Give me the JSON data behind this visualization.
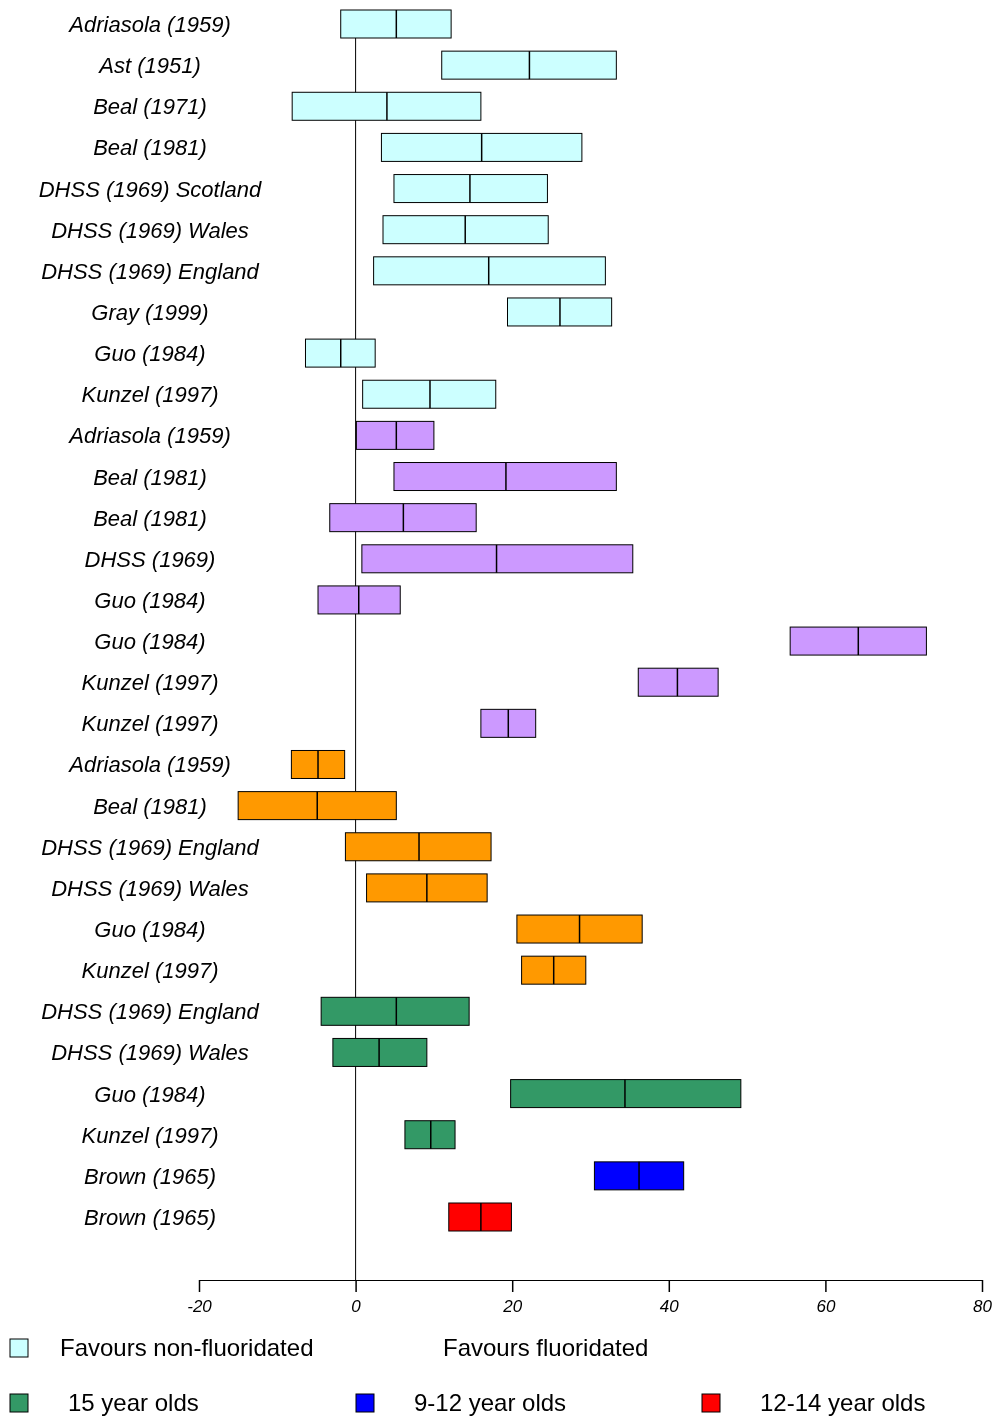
{
  "chart_data": {
    "type": "box",
    "orientation": "horizontal",
    "categories": [
      "Adriasola (1959)",
      "Ast (1951)",
      "Beal (1971)",
      "Beal (1981)",
      "DHSS (1969) Scotland",
      "DHSS (1969) Wales",
      "DHSS (1969) England",
      "Gray (1999)",
      "Guo (1984)",
      "Kunzel (1997)",
      "Adriasola (1959)",
      "Beal (1981)",
      "Beal (1981)",
      "DHSS (1969)",
      "Guo (1984)",
      "Guo (1984)",
      "Kunzel (1997)",
      "Kunzel (1997)",
      "Adriasola (1959)",
      "Beal (1981)",
      "DHSS (1969) England",
      "DHSS (1969) Wales",
      "Guo (1984)",
      "Kunzel (1997)",
      "DHSS (1969) England",
      "DHSS (1969) Wales",
      "Guo (1984)",
      "Kunzel (1997)",
      "Brown (1965)",
      "Brown (1965)"
    ],
    "series": [
      {
        "name": "Favours non-fluoridated",
        "color": "#ccffff",
        "boxes": [
          {
            "low": -1.9,
            "q1": -1.9,
            "median": 5.2,
            "q3": 12.2,
            "high": 12.2
          },
          {
            "low": 11,
            "q1": 11,
            "median": 22.2,
            "q3": 33.3,
            "high": 33.3
          },
          {
            "low": -8.1,
            "q1": -8.1,
            "median": 4,
            "q3": 16,
            "high": 16
          },
          {
            "low": 3.3,
            "q1": 3.3,
            "median": 16.1,
            "q3": 28.9,
            "high": 28.9
          },
          {
            "low": 4.9,
            "q1": 4.9,
            "median": 14.6,
            "q3": 24.5,
            "high": 24.5
          },
          {
            "low": 3.5,
            "q1": 3.5,
            "median": 14,
            "q3": 24.6,
            "high": 24.6
          },
          {
            "low": 2.3,
            "q1": 2.3,
            "median": 17,
            "q3": 31.9,
            "high": 31.9
          },
          {
            "low": 19.4,
            "q1": 19.4,
            "median": 26.1,
            "q3": 32.7,
            "high": 32.7
          },
          {
            "low": -6.4,
            "q1": -6.4,
            "median": -1.9,
            "q3": 2.5,
            "high": 2.5
          },
          {
            "low": 0.9,
            "q1": 0.9,
            "median": 9.5,
            "q3": 17.9,
            "high": 17.9
          },
          null,
          null,
          null,
          null,
          null,
          null,
          null,
          null,
          null,
          null,
          null,
          null,
          null,
          null,
          null,
          null,
          null,
          null,
          null,
          null
        ]
      },
      {
        "color": "#cc99ff",
        "boxes": [
          null,
          null,
          null,
          null,
          null,
          null,
          null,
          null,
          null,
          null,
          {
            "low": 0.1,
            "q1": 0.1,
            "median": 5.2,
            "q3": 10,
            "high": 10
          },
          {
            "low": 4.9,
            "q1": 4.9,
            "median": 19.2,
            "q3": 33.3,
            "high": 33.3
          },
          {
            "low": -3.3,
            "q1": -3.3,
            "median": 6.1,
            "q3": 15.4,
            "high": 15.4
          },
          {
            "low": 0.8,
            "q1": 0.8,
            "median": 18,
            "q3": 35.4,
            "high": 35.4
          },
          {
            "low": -4.8,
            "q1": -4.8,
            "median": 0.4,
            "q3": 5.7,
            "high": 5.7
          },
          {
            "low": 55.5,
            "q1": 55.5,
            "median": 64.2,
            "q3": 72.9,
            "high": 72.9
          },
          {
            "low": 36.1,
            "q1": 36.1,
            "median": 41.1,
            "q3": 46.3,
            "high": 46.3
          },
          {
            "low": 16,
            "q1": 16,
            "median": 19.5,
            "q3": 23,
            "high": 23
          },
          null,
          null,
          null,
          null,
          null,
          null,
          null,
          null,
          null,
          null,
          null,
          null
        ]
      },
      {
        "color": "#ff9900",
        "boxes": [
          null,
          null,
          null,
          null,
          null,
          null,
          null,
          null,
          null,
          null,
          null,
          null,
          null,
          null,
          null,
          null,
          null,
          null,
          {
            "low": -8.2,
            "q1": -8.2,
            "median": -4.8,
            "q3": -1.4,
            "high": -1.4
          },
          {
            "low": -15,
            "q1": -15,
            "median": -4.9,
            "q3": 5.2,
            "high": 5.2
          },
          {
            "low": -1.3,
            "q1": -1.3,
            "median": 8.1,
            "q3": 17.3,
            "high": 17.3
          },
          {
            "low": 1.4,
            "q1": 1.4,
            "median": 9.1,
            "q3": 16.8,
            "high": 16.8
          },
          {
            "low": 20.6,
            "q1": 20.6,
            "median": 28.6,
            "q3": 36.6,
            "high": 36.6
          },
          {
            "low": 21.2,
            "q1": 21.2,
            "median": 25.3,
            "q3": 29.4,
            "high": 29.4
          },
          null,
          null,
          null,
          null,
          null,
          null
        ]
      },
      {
        "name": "15 year olds",
        "color": "#339966",
        "boxes": [
          null,
          null,
          null,
          null,
          null,
          null,
          null,
          null,
          null,
          null,
          null,
          null,
          null,
          null,
          null,
          null,
          null,
          null,
          null,
          null,
          null,
          null,
          null,
          null,
          {
            "low": -4.4,
            "q1": -4.4,
            "median": 5.2,
            "q3": 14.5,
            "high": 14.5
          },
          {
            "low": -2.9,
            "q1": -2.9,
            "median": 3,
            "q3": 9.1,
            "high": 9.1
          },
          {
            "low": 19.8,
            "q1": 19.8,
            "median": 34.4,
            "q3": 49.2,
            "high": 49.2
          },
          {
            "low": 6.3,
            "q1": 6.3,
            "median": 9.6,
            "q3": 12.7,
            "high": 12.7
          },
          null,
          null
        ]
      },
      {
        "name": "9-12 year olds",
        "color": "#0000ff",
        "boxes": [
          null,
          null,
          null,
          null,
          null,
          null,
          null,
          null,
          null,
          null,
          null,
          null,
          null,
          null,
          null,
          null,
          null,
          null,
          null,
          null,
          null,
          null,
          null,
          null,
          null,
          null,
          null,
          null,
          {
            "low": 30.5,
            "q1": 30.5,
            "median": 36.2,
            "q3": 41.9,
            "high": 41.9
          },
          null
        ]
      },
      {
        "name": "12-14 year olds",
        "color": "#ff0000",
        "boxes": [
          null,
          null,
          null,
          null,
          null,
          null,
          null,
          null,
          null,
          null,
          null,
          null,
          null,
          null,
          null,
          null,
          null,
          null,
          null,
          null,
          null,
          null,
          null,
          null,
          null,
          null,
          null,
          null,
          null,
          {
            "low": 11.9,
            "q1": 11.9,
            "median": 16,
            "q3": 19.9,
            "high": 19.9
          }
        ]
      }
    ],
    "xlim": [
      -20,
      80
    ],
    "xticks": [
      -20,
      0,
      20,
      40,
      60,
      80
    ],
    "ref_lines": [
      {
        "axis": "x",
        "value": 0,
        "color": "#000000"
      }
    ],
    "annotations": [
      "Favours fluoridated"
    ],
    "legend": "bottom"
  }
}
